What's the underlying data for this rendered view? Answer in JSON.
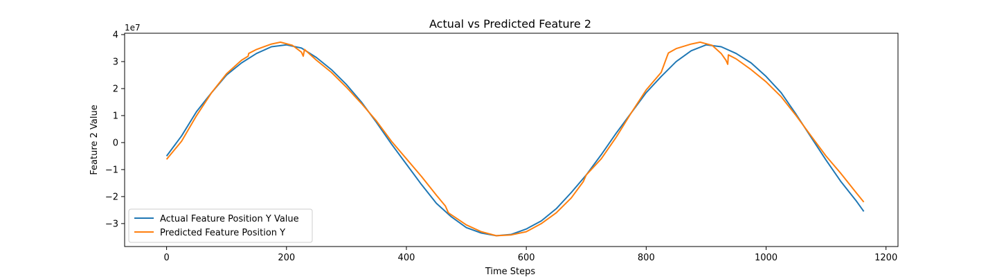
{
  "chart_data": {
    "type": "line",
    "title": "Actual vs Predicted Feature 2",
    "xlabel": "Time Steps",
    "ylabel": "Feature 2 Value",
    "y_offset_label": "1e7",
    "xlim": [
      -70,
      1220
    ],
    "ylim": [
      -3.85,
      4.05
    ],
    "x_ticks": [
      0,
      200,
      400,
      600,
      800,
      1000,
      1200
    ],
    "x_tick_labels": [
      "0",
      "200",
      "400",
      "600",
      "800",
      "1000",
      "1200"
    ],
    "y_ticks": [
      -3,
      -2,
      -1,
      0,
      1,
      2,
      3,
      4
    ],
    "y_tick_labels": [
      "−3",
      "−2",
      "−1",
      "0",
      "1",
      "2",
      "3",
      "4"
    ],
    "grid": false,
    "legend_position": "lower-left",
    "series": [
      {
        "name": "Actual Feature Position Y Value",
        "color": "#1f77b4",
        "points": [
          [
            0,
            -0.5
          ],
          [
            25,
            0.25
          ],
          [
            50,
            1.15
          ],
          [
            75,
            1.85
          ],
          [
            100,
            2.5
          ],
          [
            125,
            2.95
          ],
          [
            150,
            3.3
          ],
          [
            175,
            3.55
          ],
          [
            200,
            3.62
          ],
          [
            225,
            3.5
          ],
          [
            250,
            3.15
          ],
          [
            275,
            2.7
          ],
          [
            300,
            2.15
          ],
          [
            325,
            1.5
          ],
          [
            350,
            0.75
          ],
          [
            375,
            -0.05
          ],
          [
            400,
            -0.8
          ],
          [
            425,
            -1.55
          ],
          [
            450,
            -2.25
          ],
          [
            475,
            -2.75
          ],
          [
            500,
            -3.15
          ],
          [
            525,
            -3.35
          ],
          [
            550,
            -3.45
          ],
          [
            575,
            -3.4
          ],
          [
            600,
            -3.2
          ],
          [
            625,
            -2.9
          ],
          [
            650,
            -2.45
          ],
          [
            675,
            -1.85
          ],
          [
            700,
            -1.2
          ],
          [
            725,
            -0.45
          ],
          [
            750,
            0.35
          ],
          [
            775,
            1.1
          ],
          [
            800,
            1.85
          ],
          [
            825,
            2.45
          ],
          [
            850,
            3.0
          ],
          [
            875,
            3.4
          ],
          [
            900,
            3.62
          ],
          [
            925,
            3.55
          ],
          [
            950,
            3.3
          ],
          [
            975,
            2.95
          ],
          [
            1000,
            2.45
          ],
          [
            1025,
            1.85
          ],
          [
            1050,
            1.05
          ],
          [
            1075,
            0.2
          ],
          [
            1100,
            -0.65
          ],
          [
            1125,
            -1.45
          ],
          [
            1150,
            -2.15
          ],
          [
            1163,
            -2.55
          ]
        ]
      },
      {
        "name": "Predicted Feature Position Y",
        "color": "#ff7f0e",
        "points": [
          [
            0,
            -0.62
          ],
          [
            25,
            0.05
          ],
          [
            50,
            1.0
          ],
          [
            75,
            1.85
          ],
          [
            100,
            2.55
          ],
          [
            125,
            3.05
          ],
          [
            136,
            3.2
          ],
          [
            137,
            3.3
          ],
          [
            150,
            3.45
          ],
          [
            175,
            3.65
          ],
          [
            190,
            3.72
          ],
          [
            210,
            3.6
          ],
          [
            225,
            3.35
          ],
          [
            228,
            3.2
          ],
          [
            230,
            3.45
          ],
          [
            250,
            3.05
          ],
          [
            275,
            2.6
          ],
          [
            300,
            2.05
          ],
          [
            325,
            1.45
          ],
          [
            350,
            0.8
          ],
          [
            375,
            0.05
          ],
          [
            400,
            -0.6
          ],
          [
            425,
            -1.25
          ],
          [
            450,
            -1.95
          ],
          [
            465,
            -2.35
          ],
          [
            470,
            -2.6
          ],
          [
            500,
            -3.05
          ],
          [
            525,
            -3.3
          ],
          [
            550,
            -3.45
          ],
          [
            575,
            -3.42
          ],
          [
            600,
            -3.3
          ],
          [
            625,
            -3.0
          ],
          [
            650,
            -2.6
          ],
          [
            675,
            -2.05
          ],
          [
            695,
            -1.45
          ],
          [
            700,
            -1.2
          ],
          [
            725,
            -0.6
          ],
          [
            750,
            0.2
          ],
          [
            775,
            1.1
          ],
          [
            800,
            1.95
          ],
          [
            825,
            2.6
          ],
          [
            835,
            3.2
          ],
          [
            837,
            3.32
          ],
          [
            850,
            3.48
          ],
          [
            875,
            3.65
          ],
          [
            890,
            3.72
          ],
          [
            910,
            3.6
          ],
          [
            925,
            3.3
          ],
          [
            933,
            3.05
          ],
          [
            936,
            2.9
          ],
          [
            937,
            3.25
          ],
          [
            950,
            3.1
          ],
          [
            975,
            2.7
          ],
          [
            1000,
            2.25
          ],
          [
            1025,
            1.7
          ],
          [
            1050,
            1.0
          ],
          [
            1075,
            0.25
          ],
          [
            1100,
            -0.5
          ],
          [
            1125,
            -1.15
          ],
          [
            1150,
            -1.85
          ],
          [
            1163,
            -2.2
          ]
        ]
      }
    ]
  }
}
